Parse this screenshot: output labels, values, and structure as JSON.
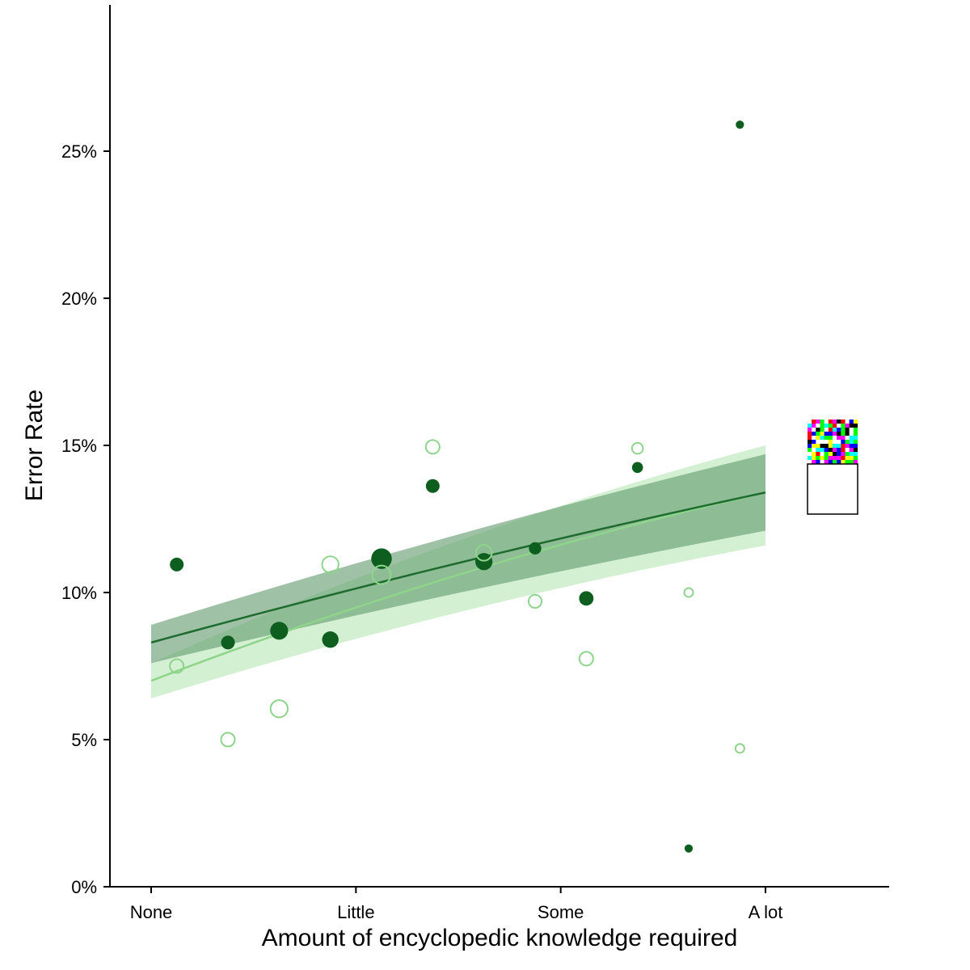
{
  "chart_data": {
    "type": "scatter",
    "xlabel": "Amount of encyclopedic knowledge required",
    "ylabel": "Error Rate",
    "xlim": [
      -0.2,
      3.6
    ],
    "ylim": [
      0,
      30
    ],
    "x_ticks": [
      {
        "value": 0,
        "label": "None"
      },
      {
        "value": 1,
        "label": "Little"
      },
      {
        "value": 2,
        "label": "Some"
      },
      {
        "value": 3,
        "label": "A lot"
      }
    ],
    "y_ticks": [
      {
        "value": 0,
        "label": "0%"
      },
      {
        "value": 5,
        "label": "5%"
      },
      {
        "value": 10,
        "label": "10%"
      },
      {
        "value": 15,
        "label": "15%"
      },
      {
        "value": 20,
        "label": "20%"
      },
      {
        "value": 25,
        "label": "25%"
      }
    ],
    "grid": false,
    "colors": {
      "dark": "#0d5e1f",
      "light": "#8fd48c",
      "dark_band": "#5f9a6b",
      "light_band": "#b8e6b4"
    },
    "series": [
      {
        "style": "filled",
        "color": "#0d5e1f",
        "points": [
          {
            "x": 0.125,
            "y": 10.95,
            "size": 1.0
          },
          {
            "x": 0.375,
            "y": 8.3,
            "size": 1.0
          },
          {
            "x": 0.625,
            "y": 8.7,
            "size": 1.3
          },
          {
            "x": 0.875,
            "y": 8.4,
            "size": 1.2
          },
          {
            "x": 1.125,
            "y": 11.15,
            "size": 1.5
          },
          {
            "x": 1.375,
            "y": 13.62,
            "size": 1.0
          },
          {
            "x": 1.625,
            "y": 11.05,
            "size": 1.25
          },
          {
            "x": 1.875,
            "y": 11.5,
            "size": 0.9
          },
          {
            "x": 2.125,
            "y": 9.8,
            "size": 1.05
          },
          {
            "x": 2.375,
            "y": 14.25,
            "size": 0.8
          },
          {
            "x": 2.625,
            "y": 1.3,
            "size": 0.6
          },
          {
            "x": 2.875,
            "y": 25.9,
            "size": 0.6
          }
        ],
        "fit": {
          "x": [
            0,
            3
          ],
          "y": [
            8.3,
            13.4
          ],
          "band_lower": [
            7.6,
            12.1
          ],
          "band_upper": [
            8.9,
            14.7
          ]
        }
      },
      {
        "style": "hollow",
        "color": "#8fd48c",
        "points": [
          {
            "x": 0.125,
            "y": 7.5,
            "size": 1.0
          },
          {
            "x": 0.375,
            "y": 5.0,
            "size": 1.0
          },
          {
            "x": 0.625,
            "y": 6.05,
            "size": 1.25
          },
          {
            "x": 0.875,
            "y": 10.95,
            "size": 1.2
          },
          {
            "x": 1.125,
            "y": 10.6,
            "size": 1.35
          },
          {
            "x": 1.375,
            "y": 14.95,
            "size": 1.0
          },
          {
            "x": 1.625,
            "y": 11.35,
            "size": 1.15
          },
          {
            "x": 1.875,
            "y": 9.7,
            "size": 0.95
          },
          {
            "x": 2.125,
            "y": 7.75,
            "size": 1.0
          },
          {
            "x": 2.375,
            "y": 14.9,
            "size": 0.8
          },
          {
            "x": 2.625,
            "y": 10.0,
            "size": 0.65
          },
          {
            "x": 2.875,
            "y": 4.7,
            "size": 0.65
          }
        ],
        "fit": {
          "x": [
            0,
            3
          ],
          "y": [
            7.0,
            13.4
          ],
          "band_lower": [
            6.4,
            11.6
          ],
          "band_upper": [
            7.6,
            15.0
          ]
        }
      }
    ]
  }
}
